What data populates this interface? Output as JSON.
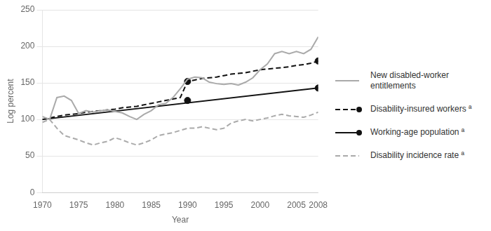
{
  "chart_data": {
    "type": "line",
    "xlabel": "Year",
    "ylabel": "Log percent",
    "xlim": [
      1970,
      2008
    ],
    "ylim": [
      0,
      250
    ],
    "xticks": [
      1970,
      1975,
      1980,
      1985,
      1990,
      1995,
      2000,
      2005,
      2008
    ],
    "yticks": [
      0,
      50,
      100,
      150,
      200,
      250
    ],
    "grid": "y",
    "legend": "right",
    "series": [
      {
        "name": "New disabled-worker\nentitlements",
        "color": "#aaaaaa",
        "line_style": "solid",
        "x": [
          1970,
          1971,
          1972,
          1973,
          1974,
          1975,
          1976,
          1977,
          1978,
          1979,
          1980,
          1981,
          1982,
          1983,
          1984,
          1985,
          1986,
          1987,
          1988,
          1989,
          1990,
          1991,
          1992,
          1993,
          1994,
          1995,
          1996,
          1997,
          1998,
          1999,
          2000,
          2001,
          2002,
          2003,
          2004,
          2005,
          2006,
          2007,
          2008
        ],
        "values": [
          104,
          100,
          130,
          132,
          126,
          108,
          112,
          110,
          112,
          113,
          111,
          109,
          104,
          100,
          107,
          112,
          120,
          122,
          130,
          142,
          155,
          158,
          157,
          151,
          149,
          148,
          149,
          147,
          151,
          157,
          168,
          176,
          190,
          193,
          190,
          193,
          190,
          196,
          213
        ]
      },
      {
        "name": "Disability-insured workers ª",
        "color": "#111111",
        "line_style": "dashed",
        "x": [
          1970,
          1971,
          1972,
          1973,
          1974,
          1975,
          1976,
          1977,
          1978,
          1979,
          1980,
          1981,
          1982,
          1983,
          1984,
          1985,
          1986,
          1987,
          1988,
          1989,
          1990,
          1991,
          1992,
          1993,
          1994,
          1995,
          1996,
          1997,
          1998,
          1999,
          2000,
          2001,
          2002,
          2003,
          2004,
          2005,
          2006,
          2007,
          2008
        ],
        "values": [
          100,
          102,
          104,
          106,
          107,
          108,
          110,
          111,
          112,
          113,
          114,
          116,
          117,
          118,
          120,
          122,
          124,
          126,
          128,
          130,
          152,
          154,
          156,
          157,
          158,
          160,
          162,
          163,
          164,
          166,
          168,
          169,
          170,
          171,
          172,
          174,
          175,
          177,
          180
        ],
        "marker": "circle",
        "marker_x": [
          1990,
          2008
        ],
        "marker_values": [
          152,
          180
        ]
      },
      {
        "name": "Working-age population ª",
        "color": "#111111",
        "line_style": "solid",
        "x": [
          1970,
          2008
        ],
        "values": [
          100,
          143
        ],
        "marker": "circle",
        "marker_x": [
          1990,
          2008
        ],
        "marker_values": [
          126,
          143
        ]
      },
      {
        "name": "Disability incidence rate ª",
        "color": "#aaaaaa",
        "line_style": "dashed",
        "x": [
          1970,
          1971,
          1972,
          1973,
          1974,
          1975,
          1976,
          1977,
          1978,
          1979,
          1980,
          1981,
          1982,
          1983,
          1984,
          1985,
          1986,
          1987,
          1988,
          1989,
          1990,
          1991,
          1992,
          1993,
          1994,
          1995,
          1996,
          1997,
          1998,
          1999,
          2000,
          2001,
          2002,
          2003,
          2004,
          2005,
          2006,
          2007,
          2008
        ],
        "values": [
          96,
          100,
          88,
          78,
          75,
          72,
          68,
          65,
          68,
          70,
          75,
          72,
          68,
          65,
          68,
          72,
          78,
          80,
          82,
          85,
          88,
          88,
          90,
          88,
          86,
          88,
          95,
          98,
          100,
          98,
          100,
          102,
          105,
          107,
          105,
          104,
          103,
          106,
          110
        ]
      }
    ]
  }
}
